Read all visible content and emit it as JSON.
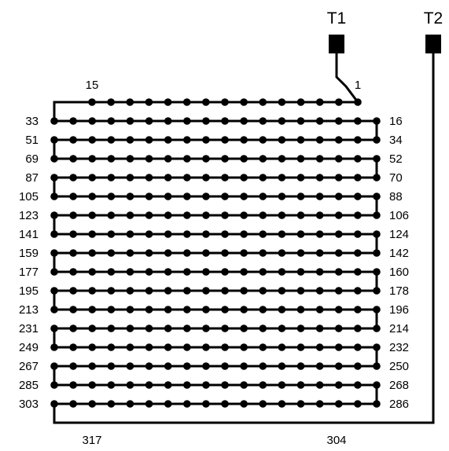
{
  "diagram": {
    "terminals": [
      {
        "label": "T1"
      },
      {
        "label": "T2"
      }
    ],
    "top_row": {
      "left_label": "15",
      "right_label": "1"
    },
    "left_labels": [
      "33",
      "51",
      "69",
      "87",
      "105",
      "123",
      "141",
      "159",
      "177",
      "195",
      "213",
      "231",
      "249",
      "267",
      "285",
      "303"
    ],
    "right_labels": [
      "16",
      "34",
      "52",
      "70",
      "88",
      "106",
      "124",
      "142",
      "160",
      "178",
      "196",
      "214",
      "232",
      "250",
      "268",
      "286"
    ],
    "bottom_row": {
      "left_label": "317",
      "right_label": "304"
    },
    "colors": {
      "wire": "#000000",
      "node": "#000000",
      "background": "#ffffff"
    }
  }
}
